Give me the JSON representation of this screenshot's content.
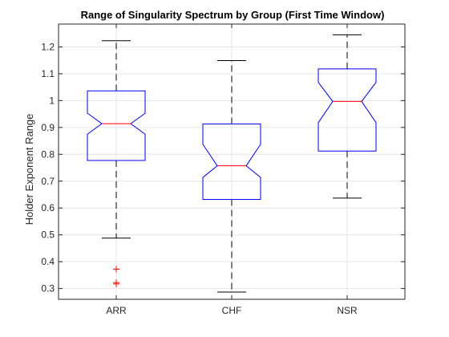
{
  "chart_data": {
    "type": "boxplot",
    "title": "Range of Singularity Spectrum by Group (First Time Window)",
    "xlabel": "",
    "ylabel": "Holder Exponent Range",
    "ylim": [
      0.26,
      1.285
    ],
    "yticks": [
      0.3,
      0.4,
      0.5,
      0.6,
      0.7,
      0.8,
      0.9,
      1,
      1.1,
      1.2
    ],
    "ytick_labels": [
      "0.3",
      "0.4",
      "0.5",
      "0.6",
      "0.7",
      "0.8",
      "0.9",
      "1",
      "1.1",
      "1.2"
    ],
    "grid": true,
    "notched": true,
    "categories": [
      "ARR",
      "CHF",
      "NSR"
    ],
    "boxes": [
      {
        "label": "ARR",
        "whisker_low": 0.488,
        "q1": 0.777,
        "notch_low": 0.875,
        "median": 0.914,
        "notch_high": 0.953,
        "q3": 1.036,
        "whisker_high": 1.223,
        "outliers": [
          0.372,
          0.322,
          0.317
        ]
      },
      {
        "label": "CHF",
        "whisker_low": 0.287,
        "q1": 0.632,
        "notch_low": 0.714,
        "median": 0.757,
        "notch_high": 0.837,
        "q3": 0.913,
        "whisker_high": 1.149,
        "outliers": []
      },
      {
        "label": "NSR",
        "whisker_low": 0.637,
        "q1": 0.812,
        "notch_low": 0.918,
        "median": 0.997,
        "notch_high": 1.068,
        "q3": 1.118,
        "whisker_high": 1.245,
        "outliers": []
      }
    ],
    "colors": {
      "box": "#0000ff",
      "median": "#ff0000",
      "whisker": "#000000",
      "outlier": "#ff0000",
      "grid": "#e6e6e6",
      "axis": "#262626"
    }
  }
}
